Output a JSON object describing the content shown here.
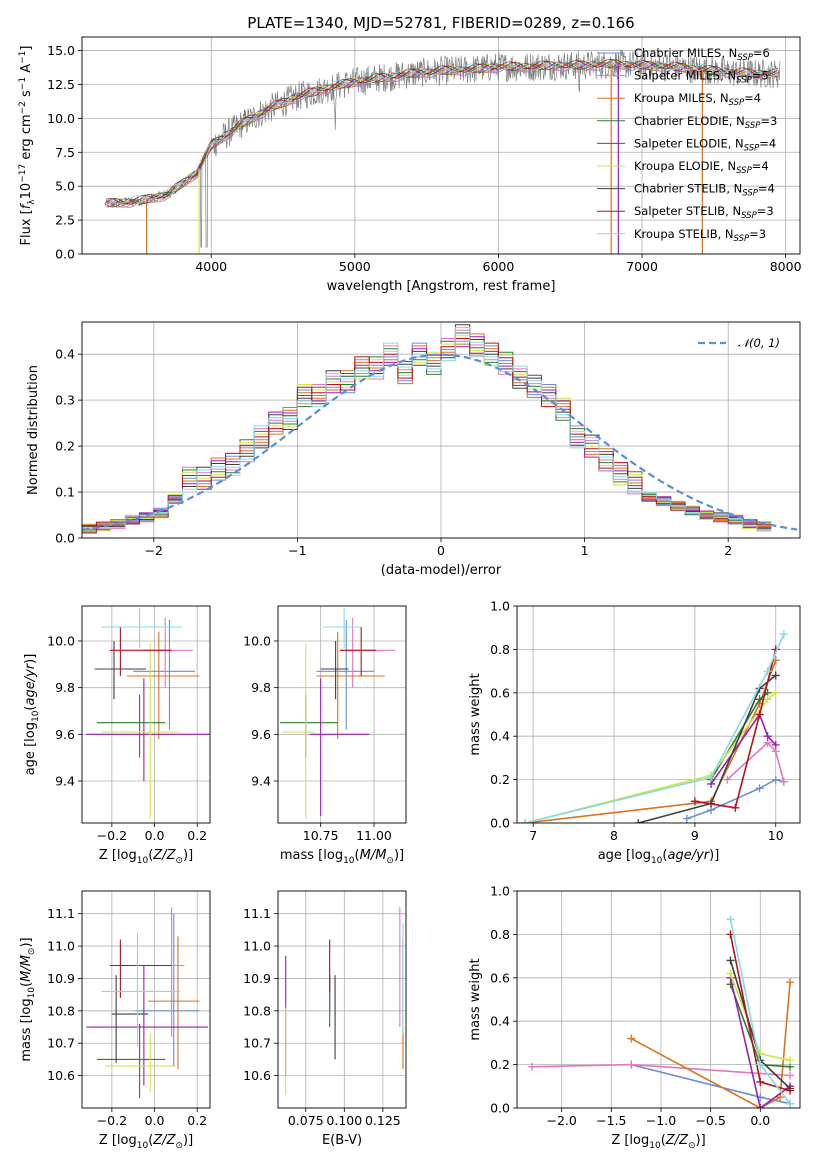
{
  "figure": {
    "title": "PLATE=1340, MJD=52781, FIBERID=0289, z=0.166"
  },
  "models": [
    {
      "name": "Chabrier MILES",
      "nssp": "6",
      "color": "#6b8fd6"
    },
    {
      "name": "Salpeter MILES",
      "nssp": "5",
      "color": "#e377c2"
    },
    {
      "name": "Kroupa MILES",
      "nssp": "4",
      "color": "#d9731d"
    },
    {
      "name": "Chabrier ELODIE",
      "nssp": "3",
      "color": "#2e7d32"
    },
    {
      "name": "Salpeter ELODIE",
      "nssp": "4",
      "color": "#9b1fb0"
    },
    {
      "name": "Kroupa ELODIE",
      "nssp": "4",
      "color": "#d4e34a"
    },
    {
      "name": "Chabrier STELIB",
      "nssp": "4",
      "color": "#404040"
    },
    {
      "name": "Salpeter STELIB",
      "nssp": "3",
      "color": "#b5121b"
    },
    {
      "name": "Kroupa STELIB",
      "nssp": "3",
      "color": "#86dbe3"
    }
  ],
  "chart_data": [
    {
      "id": "spectrum",
      "type": "line",
      "xlabel": "wavelength [Angstrom, rest frame]",
      "ylabel": "Flux [f_λ 10^-17 erg cm^-2 s^-1 A^-1]",
      "xlim": [
        3100,
        8100
      ],
      "ylim": [
        0,
        16
      ],
      "xticks": [
        4000,
        5000,
        6000,
        7000,
        8000
      ],
      "yticks": [
        0.0,
        2.5,
        5.0,
        7.5,
        10.0,
        12.5,
        15.0
      ],
      "legend": "right",
      "data_color": "#808080",
      "continuum": {
        "x": [
          3250,
          3500,
          3700,
          3900,
          4000,
          4200,
          4400,
          4600,
          4800,
          5000,
          5200,
          5400,
          5600,
          5800,
          6000,
          6200,
          6400,
          6600,
          6800,
          7000,
          7200,
          7400,
          7600,
          7800,
          7950
        ],
        "y": [
          3.7,
          3.9,
          4.4,
          6.0,
          8.0,
          9.5,
          10.7,
          11.6,
          12.2,
          12.7,
          13.0,
          13.3,
          13.5,
          13.6,
          13.8,
          13.8,
          13.9,
          13.9,
          14.0,
          13.9,
          13.8,
          13.6,
          13.4,
          13.3,
          13.3
        ]
      }
    },
    {
      "id": "residuals",
      "type": "line",
      "xlabel": "(data-model)/error",
      "ylabel": "Normed distribution",
      "xlim": [
        -2.5,
        2.5
      ],
      "ylim": [
        0,
        0.47
      ],
      "xticks": [
        -2,
        -1,
        0,
        1,
        2
      ],
      "yticks": [
        0.0,
        0.1,
        0.2,
        0.3,
        0.4
      ],
      "legend": "top-right",
      "reference_label": "N(0,1)",
      "reference_color": "#5b8fd6",
      "hist_values": [
        0.02,
        0.025,
        0.03,
        0.04,
        0.045,
        0.055,
        0.085,
        0.13,
        0.13,
        0.15,
        0.16,
        0.19,
        0.22,
        0.25,
        0.26,
        0.31,
        0.31,
        0.34,
        0.34,
        0.37,
        0.37,
        0.4,
        0.36,
        0.4,
        0.38,
        0.41,
        0.44,
        0.42,
        0.4,
        0.38,
        0.35,
        0.33,
        0.31,
        0.28,
        0.22,
        0.2,
        0.17,
        0.14,
        0.12,
        0.09,
        0.08,
        0.07,
        0.06,
        0.05,
        0.045,
        0.04,
        0.03,
        0.025
      ],
      "hist_start": -2.5,
      "hist_step": 0.1
    },
    {
      "id": "age-vs-Z",
      "type": "scatter",
      "xlabel": "Z [log10(Z/Z⊙)]",
      "ylabel": "age [log10(age/yr)]",
      "xlim": [
        -0.34,
        0.26
      ],
      "ylim": [
        9.22,
        10.15
      ],
      "xticks": [
        -0.2,
        0.0,
        0.2
      ],
      "yticks": [
        9.4,
        9.6,
        9.8,
        10.0
      ],
      "points": [
        {
          "model": 0,
          "x": 0.07,
          "y": 9.87,
          "xerr": [
            0.17,
            0.12
          ],
          "yerr": [
            0.25,
            0.22
          ]
        },
        {
          "model": 1,
          "x": 0.05,
          "y": 9.96,
          "xerr": [
            0.1,
            0.13
          ],
          "yerr": [
            0.16,
            0.14
          ]
        },
        {
          "model": 2,
          "x": 0.02,
          "y": 9.85,
          "xerr": [
            0.15,
            0.19
          ],
          "yerr": [
            0.27,
            0.19
          ]
        },
        {
          "model": 3,
          "x": -0.07,
          "y": 9.65,
          "xerr": [
            0.2,
            0.12
          ],
          "yerr": [
            0.15,
            0.12
          ]
        },
        {
          "model": 4,
          "x": -0.05,
          "y": 9.6,
          "xerr": [
            0.27,
            0.32
          ],
          "yerr": [
            0.2,
            0.24
          ]
        },
        {
          "model": 5,
          "x": -0.02,
          "y": 9.61,
          "xerr": [
            0.23,
            0.14
          ],
          "yerr": [
            0.37,
            0.38
          ]
        },
        {
          "model": 6,
          "x": -0.19,
          "y": 9.88,
          "xerr": [
            0.09,
            0.15
          ],
          "yerr": [
            0.13,
            0.12
          ]
        },
        {
          "model": 7,
          "x": -0.16,
          "y": 9.96,
          "xerr": [
            0.05,
            0.24
          ],
          "yerr": [
            0.11,
            0.1
          ]
        },
        {
          "model": 8,
          "x": -0.07,
          "y": 10.06,
          "xerr": [
            0.18,
            0.2
          ],
          "yerr": [
            0.09,
            0.08
          ]
        }
      ]
    },
    {
      "id": "age-vs-mass",
      "type": "scatter",
      "xlabel": "mass [log10(M/M⊙)]",
      "ylabel": "",
      "xlim": [
        10.55,
        11.15
      ],
      "ylim": [
        9.22,
        10.15
      ],
      "xticks": [
        10.75,
        11.0
      ],
      "yticks": [
        9.4,
        9.6,
        9.8,
        10.0
      ],
      "points": [
        {
          "model": 0,
          "x": 10.87,
          "y": 9.87,
          "xerr": [
            0.14,
            0.13
          ],
          "yerr": [
            0.25,
            0.22
          ]
        },
        {
          "model": 1,
          "x": 10.9,
          "y": 9.96,
          "xerr": [
            0.06,
            0.2
          ],
          "yerr": [
            0.16,
            0.14
          ]
        },
        {
          "model": 2,
          "x": 10.83,
          "y": 9.85,
          "xerr": [
            0.1,
            0.22
          ],
          "yerr": [
            0.27,
            0.19
          ]
        },
        {
          "model": 3,
          "x": 10.68,
          "y": 9.65,
          "xerr": [
            0.12,
            0.15
          ],
          "yerr": [
            0.15,
            0.12
          ]
        },
        {
          "model": 4,
          "x": 10.75,
          "y": 9.6,
          "xerr": [
            0.05,
            0.23
          ],
          "yerr": [
            0.35,
            0.24
          ]
        },
        {
          "model": 5,
          "x": 10.68,
          "y": 9.61,
          "xerr": [
            0.11,
            0.04
          ],
          "yerr": [
            0.37,
            0.38
          ]
        },
        {
          "model": 6,
          "x": 10.82,
          "y": 9.88,
          "xerr": [
            0.07,
            0.06
          ],
          "yerr": [
            0.13,
            0.12
          ]
        },
        {
          "model": 7,
          "x": 10.94,
          "y": 9.96,
          "xerr": [
            0.1,
            0.07
          ],
          "yerr": [
            0.11,
            0.1
          ]
        },
        {
          "model": 8,
          "x": 10.86,
          "y": 10.06,
          "xerr": [
            0.1,
            0.08
          ],
          "yerr": [
            0.09,
            0.08
          ]
        }
      ]
    },
    {
      "id": "mass-weight-vs-age",
      "type": "line",
      "xlabel": "age [log10(age/yr)]",
      "ylabel": "mass weight",
      "xlim": [
        6.8,
        10.3
      ],
      "ylim": [
        0.0,
        1.0
      ],
      "xticks": [
        7,
        8,
        9,
        10
      ],
      "yticks": [
        0.0,
        0.2,
        0.4,
        0.6,
        0.8,
        1.0
      ],
      "grid": true,
      "series": [
        {
          "model": 0,
          "x": [
            8.9,
            9.2,
            9.8,
            10.0,
            10.1
          ],
          "y": [
            0.02,
            0.06,
            0.16,
            0.2,
            0.19
          ]
        },
        {
          "model": 1,
          "x": [
            9.4,
            9.9,
            10.0,
            10.1
          ],
          "y": [
            0.2,
            0.37,
            0.33,
            0.19
          ]
        },
        {
          "model": 2,
          "x": [
            6.9,
            9.2,
            9.8,
            10.0
          ],
          "y": [
            0.0,
            0.1,
            0.55,
            0.75
          ]
        },
        {
          "model": 3,
          "x": [
            9.2,
            9.8,
            9.9
          ],
          "y": [
            0.2,
            0.57,
            0.6
          ]
        },
        {
          "model": 4,
          "x": [
            9.2,
            9.8,
            9.9,
            10.0
          ],
          "y": [
            0.18,
            0.5,
            0.4,
            0.36
          ]
        },
        {
          "model": 5,
          "x": [
            6.9,
            9.2,
            9.9,
            10.0
          ],
          "y": [
            0.0,
            0.22,
            0.57,
            0.6
          ]
        },
        {
          "model": 6,
          "x": [
            8.3,
            9.2,
            9.8,
            10.0
          ],
          "y": [
            0.0,
            0.09,
            0.62,
            0.68
          ]
        },
        {
          "model": 7,
          "x": [
            9.0,
            9.5,
            9.8,
            10.0
          ],
          "y": [
            0.1,
            0.07,
            0.5,
            0.8
          ]
        },
        {
          "model": 8,
          "x": [
            6.9,
            9.2,
            9.9,
            10.1
          ],
          "y": [
            0.0,
            0.21,
            0.7,
            0.87
          ]
        }
      ]
    },
    {
      "id": "mass-vs-Z",
      "type": "scatter",
      "xlabel": "Z [log10(Z/Z⊙)]",
      "ylabel": "mass [log10(M/M⊙)]",
      "xlim": [
        -0.34,
        0.26
      ],
      "ylim": [
        10.5,
        11.17
      ],
      "xticks": [
        -0.2,
        0.0,
        0.2
      ],
      "yticks": [
        10.6,
        10.7,
        10.8,
        10.9,
        11.0,
        11.1
      ],
      "points": [
        {
          "model": 0,
          "x": 0.09,
          "y": 10.8,
          "xerr": [
            0.18,
            0.12
          ],
          "yerr": [
            0.17,
            0.3
          ]
        },
        {
          "model": 1,
          "x": 0.08,
          "y": 10.94,
          "xerr": [
            0.09,
            0.06
          ],
          "yerr": [
            0.22,
            0.18
          ]
        },
        {
          "model": 2,
          "x": 0.11,
          "y": 10.83,
          "xerr": [
            0.14,
            0.1
          ],
          "yerr": [
            0.21,
            0.2
          ]
        },
        {
          "model": 3,
          "x": -0.07,
          "y": 10.65,
          "xerr": [
            0.2,
            0.12
          ],
          "yerr": [
            0.12,
            0.11
          ]
        },
        {
          "model": 4,
          "x": -0.05,
          "y": 10.75,
          "xerr": [
            0.27,
            0.3
          ],
          "yerr": [
            0.18,
            0.19
          ]
        },
        {
          "model": 5,
          "x": -0.02,
          "y": 10.63,
          "xerr": [
            0.21,
            0.12
          ],
          "yerr": [
            0.08,
            0.1
          ]
        },
        {
          "model": 6,
          "x": -0.18,
          "y": 10.79,
          "xerr": [
            0.02,
            0.15
          ],
          "yerr": [
            0.15,
            0.12
          ]
        },
        {
          "model": 7,
          "x": -0.16,
          "y": 10.94,
          "xerr": [
            0.05,
            0.24
          ],
          "yerr": [
            0.1,
            0.08
          ]
        },
        {
          "model": 8,
          "x": -0.08,
          "y": 10.86,
          "xerr": [
            0.17,
            0.2
          ],
          "yerr": [
            0.17,
            0.18
          ]
        }
      ]
    },
    {
      "id": "mass-vs-EBV",
      "type": "scatter",
      "xlabel": "E(B-V)",
      "ylabel": "",
      "xlim": [
        0.057,
        0.14
      ],
      "ylim": [
        10.5,
        11.17
      ],
      "xticks": [
        0.075,
        0.1,
        0.125
      ],
      "xtick_labels": [
        "0.075",
        "0.100",
        "0.125"
      ],
      "yticks": [
        10.6,
        10.7,
        10.8,
        10.9,
        11.0,
        11.1
      ],
      "points": [
        {
          "model": 0,
          "x": 0.0905,
          "y": 10.85,
          "yerr": [
            0.06,
            0.06
          ]
        },
        {
          "model": 1,
          "x": 0.136,
          "y": 10.95,
          "yerr": [
            0.2,
            0.17
          ]
        },
        {
          "model": 2,
          "x": 0.138,
          "y": 10.82,
          "yerr": [
            0.2,
            0.2
          ]
        },
        {
          "model": 3,
          "x": 0.0905,
          "y": 10.83,
          "yerr": [
            0.08,
            0.08
          ]
        },
        {
          "model": 4,
          "x": 0.062,
          "y": 10.8,
          "yerr": [
            0.2,
            0.17
          ]
        },
        {
          "model": 5,
          "x": 0.062,
          "y": 10.68,
          "yerr": [
            0.14,
            0.13
          ]
        },
        {
          "model": 6,
          "x": 0.094,
          "y": 10.78,
          "yerr": [
            0.13,
            0.13
          ]
        },
        {
          "model": 7,
          "x": 0.0905,
          "y": 10.92,
          "yerr": [
            0.06,
            0.1
          ]
        },
        {
          "model": 8,
          "x": 0.138,
          "y": 10.9,
          "yerr": [
            0.17,
            0.17
          ]
        }
      ]
    },
    {
      "id": "mass-weight-vs-Z",
      "type": "line",
      "xlabel": "Z [log10(Z/Z⊙)]",
      "ylabel": "mass weight",
      "xlim": [
        -2.45,
        0.4
      ],
      "ylim": [
        0.0,
        1.0
      ],
      "xticks": [
        -2.0,
        -1.5,
        -1.0,
        -0.5,
        0.0
      ],
      "yticks": [
        0.0,
        0.2,
        0.4,
        0.6,
        0.8,
        1.0
      ],
      "grid": true,
      "series": [
        {
          "model": 0,
          "x": [
            -1.3,
            0.0,
            0.3
          ],
          "y": [
            0.2,
            0.05,
            0.02
          ]
        },
        {
          "model": 1,
          "x": [
            -2.3,
            -1.3,
            0.3
          ],
          "y": [
            0.19,
            0.2,
            0.15
          ]
        },
        {
          "model": 2,
          "x": [
            -1.3,
            0.0,
            0.2,
            0.3
          ],
          "y": [
            0.32,
            0.0,
            0.05,
            0.58
          ]
        },
        {
          "model": 3,
          "x": [
            -0.3,
            0.0,
            0.3
          ],
          "y": [
            0.57,
            0.2,
            0.19
          ]
        },
        {
          "model": 4,
          "x": [
            -0.3,
            0.0,
            0.3
          ],
          "y": [
            0.6,
            0.0,
            0.1
          ]
        },
        {
          "model": 5,
          "x": [
            -0.3,
            0.0,
            0.3
          ],
          "y": [
            0.62,
            0.25,
            0.22
          ]
        },
        {
          "model": 6,
          "x": [
            -0.3,
            0.0,
            0.3
          ],
          "y": [
            0.68,
            0.22,
            0.09
          ]
        },
        {
          "model": 7,
          "x": [
            -0.3,
            0.0,
            0.3
          ],
          "y": [
            0.8,
            0.12,
            0.08
          ]
        },
        {
          "model": 8,
          "x": [
            -0.3,
            0.0,
            0.3
          ],
          "y": [
            0.87,
            0.2,
            0.02
          ]
        }
      ]
    }
  ]
}
